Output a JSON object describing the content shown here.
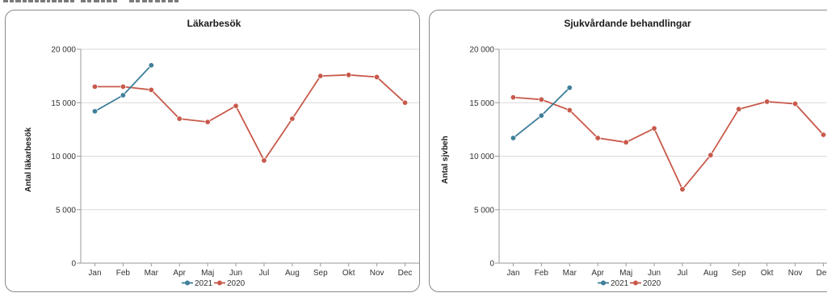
{
  "charts_header": {
    "partial_text": "",
    "color": "#7a7a7a"
  },
  "chart_data": [
    {
      "type": "line",
      "title": "Läkarbesök",
      "xlabel": "",
      "ylabel": "Antal läkarbesök",
      "categories": [
        "Jan",
        "Feb",
        "Mar",
        "Apr",
        "Maj",
        "Jun",
        "Jul",
        "Aug",
        "Sep",
        "Okt",
        "Nov",
        "Dec"
      ],
      "ylim": [
        0,
        20000
      ],
      "yticks": [
        0,
        5000,
        10000,
        15000,
        20000
      ],
      "ytick_labels": [
        "0",
        "5 000",
        "10 000",
        "15 000",
        "20 000"
      ],
      "grid": true,
      "legend": "bottom",
      "series": [
        {
          "name": "2021",
          "color": "#3f7f9a",
          "values": [
            14200,
            15700,
            18500,
            null,
            null,
            null,
            null,
            null,
            null,
            null,
            null,
            null
          ]
        },
        {
          "name": "2020",
          "color": "#c8594a",
          "values": [
            16500,
            16500,
            16200,
            13500,
            13200,
            14700,
            9600,
            13500,
            17500,
            17600,
            17400,
            15000
          ]
        }
      ]
    },
    {
      "type": "line",
      "title": "Sjukvårdande behandlingar",
      "xlabel": "",
      "ylabel": "Antal sjvbeh",
      "categories": [
        "Jan",
        "Feb",
        "Mar",
        "Apr",
        "Maj",
        "Jun",
        "Jul",
        "Aug",
        "Sep",
        "Okt",
        "Nov",
        "Dec"
      ],
      "ylim": [
        0,
        20000
      ],
      "yticks": [
        0,
        5000,
        10000,
        15000,
        20000
      ],
      "ytick_labels": [
        "0",
        "5 000",
        "10 000",
        "15 000",
        "20 000"
      ],
      "grid": true,
      "legend": "bottom",
      "series": [
        {
          "name": "2021",
          "color": "#3f7f9a",
          "values": [
            11700,
            13800,
            16400,
            null,
            null,
            null,
            null,
            null,
            null,
            null,
            null,
            null
          ]
        },
        {
          "name": "2020",
          "color": "#c8594a",
          "values": [
            15500,
            15300,
            14300,
            11700,
            11300,
            12600,
            6900,
            10100,
            14400,
            15100,
            14900,
            12000
          ]
        }
      ]
    }
  ]
}
